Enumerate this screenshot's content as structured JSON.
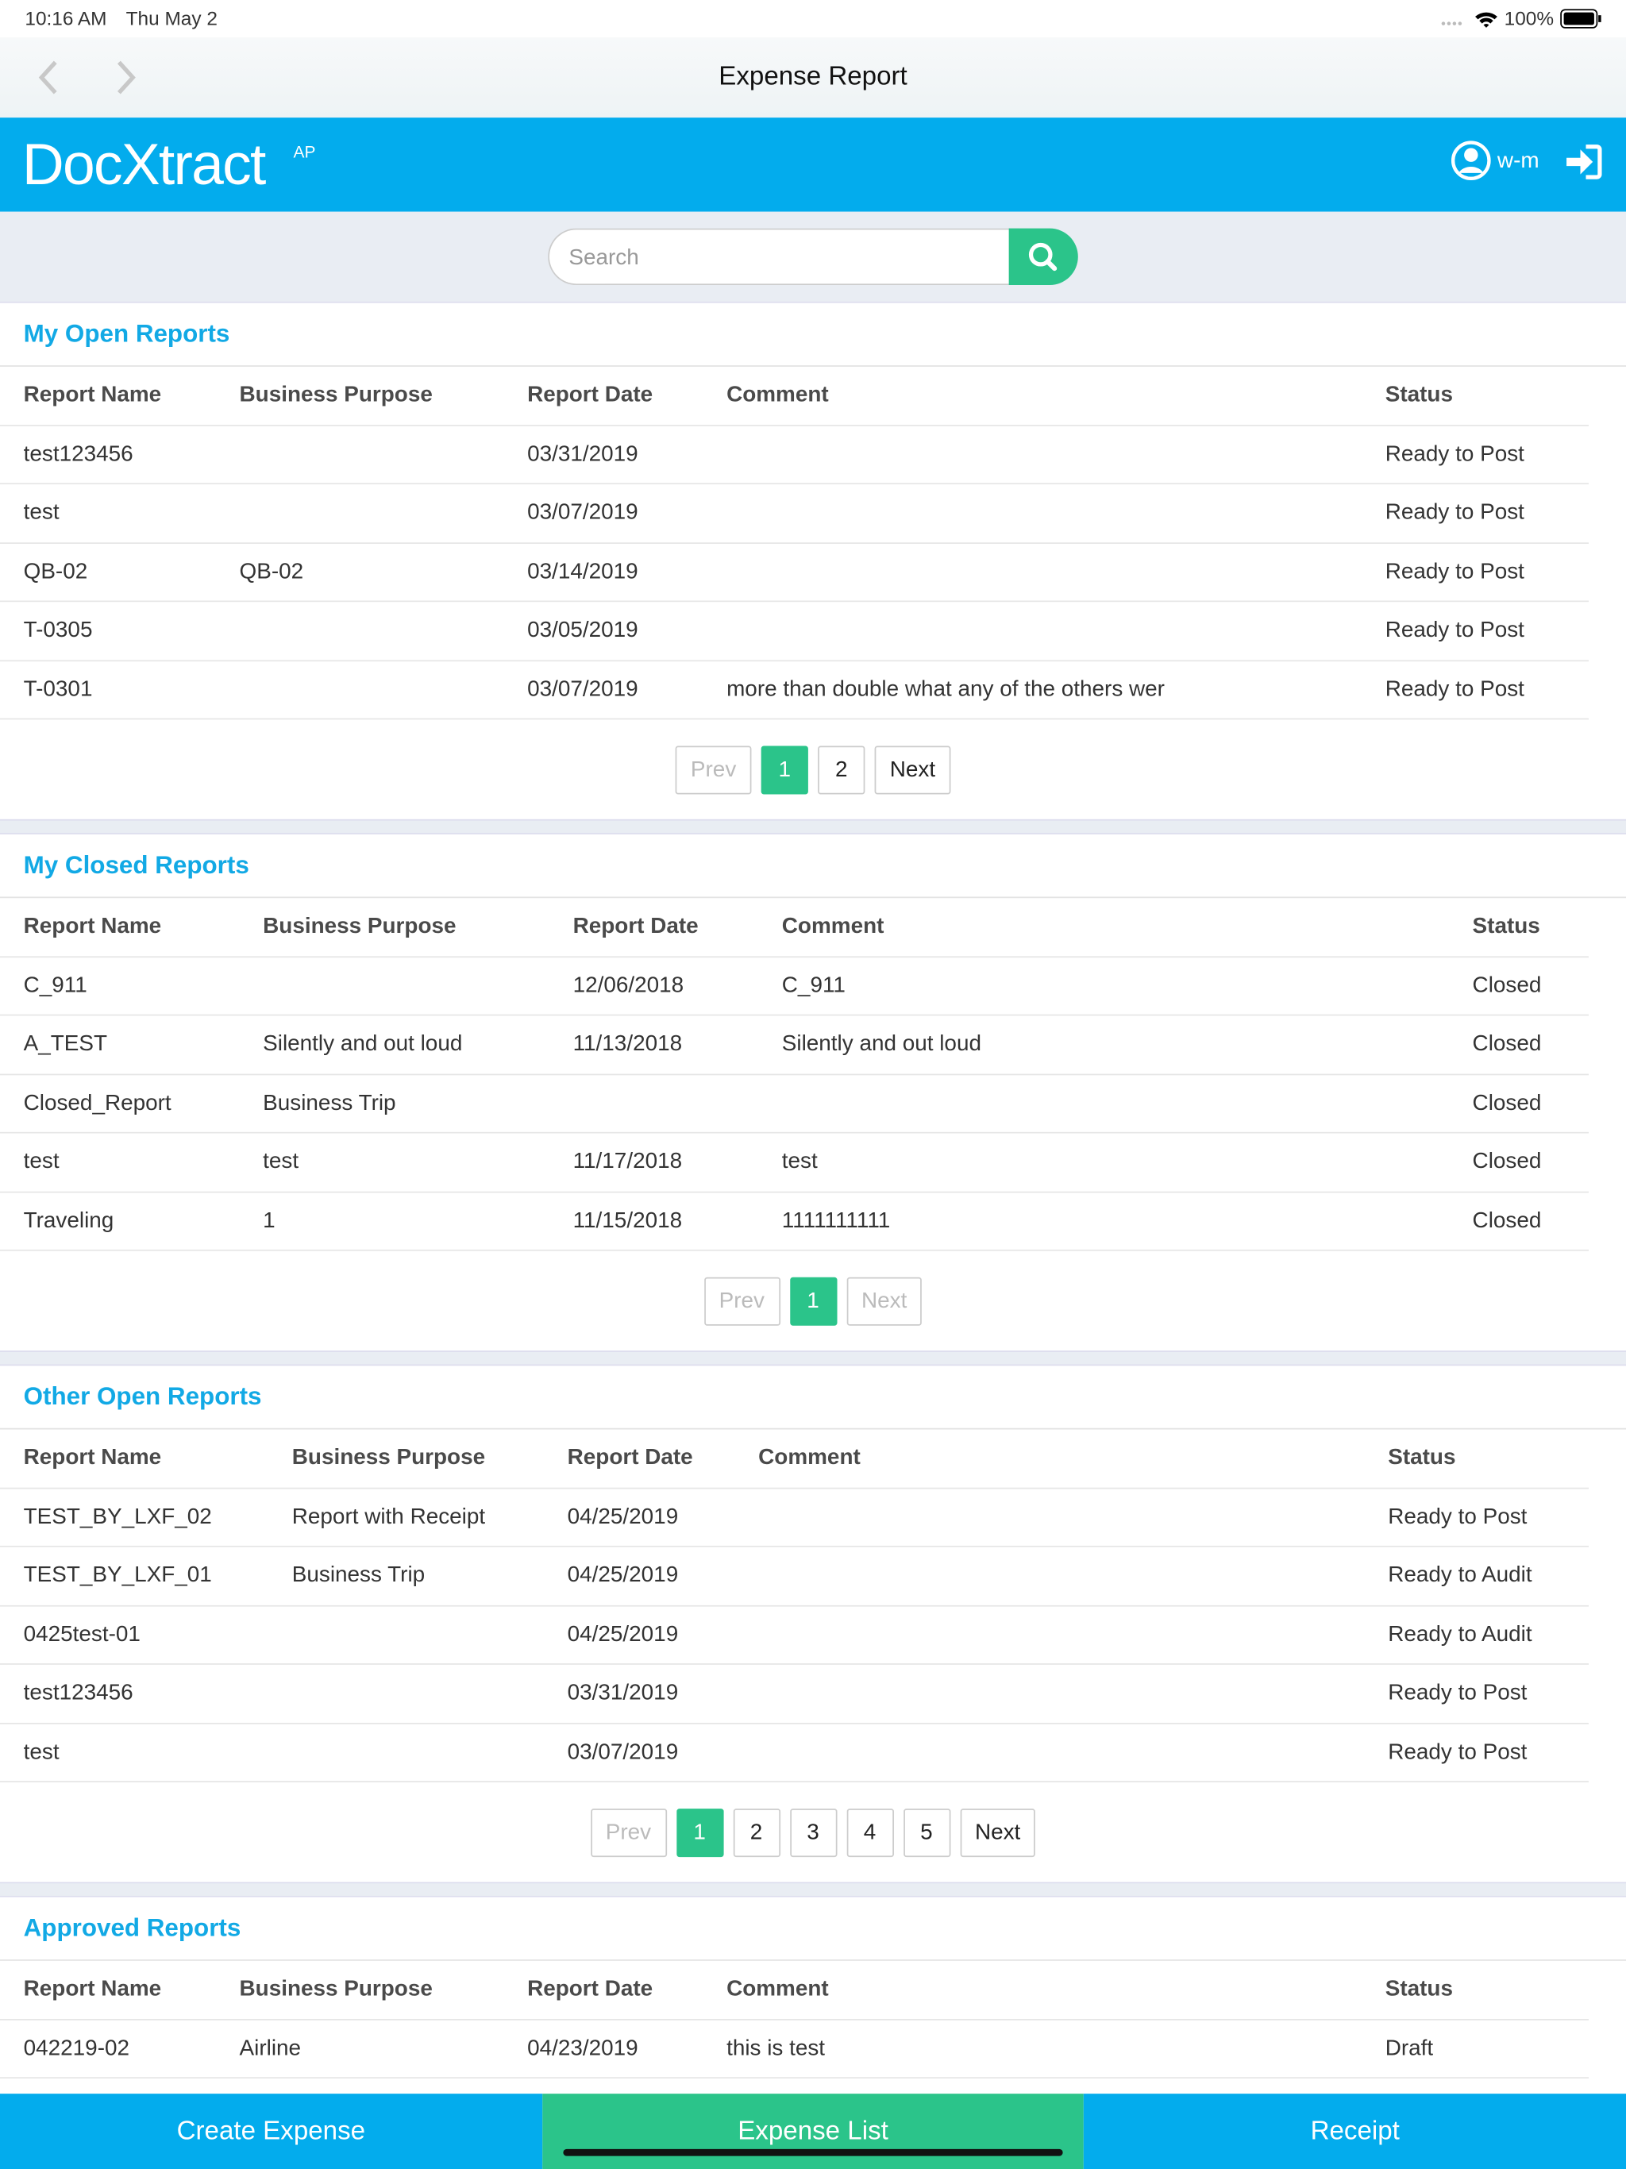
{
  "status_bar": {
    "time": "10:16 AM",
    "date": "Thu May 2",
    "battery": "100%"
  },
  "nav": {
    "title": "Expense Report"
  },
  "header": {
    "logo": "DocXtract",
    "logo_sup": "AP",
    "user": "w-m"
  },
  "search": {
    "placeholder": "Search"
  },
  "sections": [
    {
      "title": "My Open Reports",
      "columns": [
        "Report Name",
        "Business Purpose",
        "Report Date",
        "Comment",
        "Status"
      ],
      "rows": [
        [
          "test123456",
          null,
          "03/31/2019",
          null,
          "Ready to Post"
        ],
        [
          "test",
          null,
          "03/07/2019",
          null,
          "Ready to Post"
        ],
        [
          "QB-02",
          "QB-02",
          "03/14/2019",
          null,
          "Ready to Post"
        ],
        [
          "T-0305",
          null,
          "03/05/2019",
          null,
          "Ready to Post"
        ],
        [
          "T-0301",
          null,
          "03/07/2019",
          "more than double what any of the others wer",
          "Ready to Post"
        ]
      ],
      "pagination": [
        {
          "label": "Prev",
          "disabled": true
        },
        {
          "label": "1",
          "active": true
        },
        {
          "label": "2"
        },
        {
          "label": "Next"
        }
      ]
    },
    {
      "title": "My Closed Reports",
      "columns": [
        "Report Name",
        "Business Purpose",
        "Report Date",
        "Comment",
        "Status"
      ],
      "rows": [
        [
          "C_911",
          null,
          "12/06/2018",
          "C_911",
          "Closed"
        ],
        [
          "A_TEST",
          "Silently and out loud",
          "11/13/2018",
          "Silently and out loud",
          "Closed"
        ],
        [
          "Closed_Report",
          "Business Trip",
          null,
          null,
          "Closed"
        ],
        [
          "test",
          "test",
          "11/17/2018",
          "test",
          "Closed"
        ],
        [
          "Traveling",
          "1",
          "11/15/2018",
          "1111111111",
          "Closed"
        ]
      ],
      "pagination": [
        {
          "label": "Prev",
          "disabled": true
        },
        {
          "label": "1",
          "active": true
        },
        {
          "label": "Next",
          "disabled": true
        }
      ]
    },
    {
      "title": "Other Open Reports",
      "columns": [
        "Report Name",
        "Business Purpose",
        "Report Date",
        "Comment",
        "Status"
      ],
      "rows": [
        [
          "TEST_BY_LXF_02",
          "Report with Receipt",
          "04/25/2019",
          null,
          "Ready to Post"
        ],
        [
          "TEST_BY_LXF_01",
          "Business Trip",
          "04/25/2019",
          null,
          "Ready to Audit"
        ],
        [
          "0425test-01",
          null,
          "04/25/2019",
          null,
          "Ready to Audit"
        ],
        [
          "test123456",
          null,
          "03/31/2019",
          null,
          "Ready to Post"
        ],
        [
          "test",
          null,
          "03/07/2019",
          null,
          "Ready to Post"
        ]
      ],
      "pagination": [
        {
          "label": "Prev",
          "disabled": true
        },
        {
          "label": "1",
          "active": true
        },
        {
          "label": "2"
        },
        {
          "label": "3"
        },
        {
          "label": "4"
        },
        {
          "label": "5"
        },
        {
          "label": "Next"
        }
      ]
    },
    {
      "title": "Approved Reports",
      "columns": [
        "Report Name",
        "Business Purpose",
        "Report Date",
        "Comment",
        "Status"
      ],
      "rows": [
        [
          "042219-02",
          "Airline",
          "04/23/2019",
          "this is test",
          "Draft"
        ]
      ]
    }
  ],
  "tabs": [
    {
      "label": "Create Expense"
    },
    {
      "label": "Expense List",
      "active": true
    },
    {
      "label": "Receipt"
    }
  ]
}
